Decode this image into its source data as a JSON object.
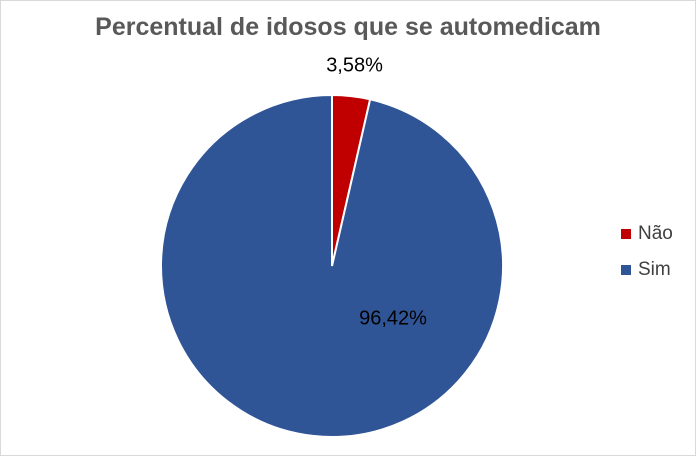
{
  "chart_data": {
    "type": "pie",
    "title": "Percentual de idosos que se automedicam",
    "categories": [
      "Não",
      "Sim"
    ],
    "values": [
      3.58,
      96.42
    ],
    "data_labels": [
      "3,58%",
      "96,42%"
    ],
    "colors": [
      "#c00000",
      "#2f5597"
    ],
    "legend_position": "right",
    "start_angle_deg": 0,
    "direction": "clockwise"
  }
}
